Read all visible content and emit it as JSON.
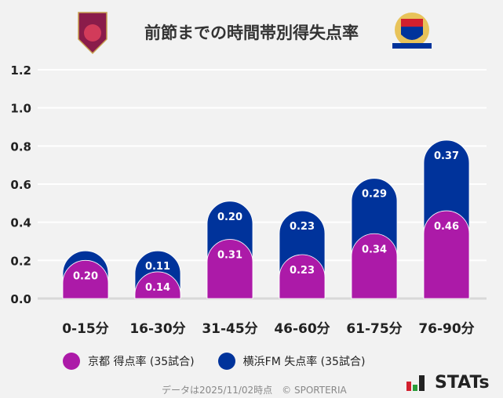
{
  "title": "前節までの時間帯別得失点率",
  "colors": {
    "kyoto": "#ac1aa8",
    "yokohama": "#00339b"
  },
  "chart_data": {
    "type": "bar",
    "stacked": true,
    "categories": [
      "0-15分",
      "16-30分",
      "31-45分",
      "46-60分",
      "61-75分",
      "76-90分"
    ],
    "series": [
      {
        "name": "京都 得点率 (35試合)",
        "values": [
          0.2,
          0.14,
          0.31,
          0.23,
          0.34,
          0.46
        ],
        "labels": [
          "0.20",
          "0.14",
          "0.31",
          "0.23",
          "0.34",
          "0.46"
        ]
      },
      {
        "name": "横浜FM 失点率 (35試合)",
        "values": [
          0.05,
          0.11,
          0.2,
          0.23,
          0.29,
          0.37
        ],
        "labels": [
          "",
          "0.11",
          "0.20",
          "0.23",
          "0.29",
          "0.37"
        ]
      }
    ],
    "yticks": [
      "0.0",
      "0.2",
      "0.4",
      "0.6",
      "0.8",
      "1.0",
      "1.2"
    ],
    "ylim": [
      0,
      1.2
    ],
    "grid": true,
    "legend": "bottom"
  },
  "legend": [
    "京都 得点率 (35試合)",
    "横浜FM 失点率 (35試合)"
  ],
  "footer": "データは2025/11/02時点　© SPORTERIA",
  "brand": "STATs"
}
